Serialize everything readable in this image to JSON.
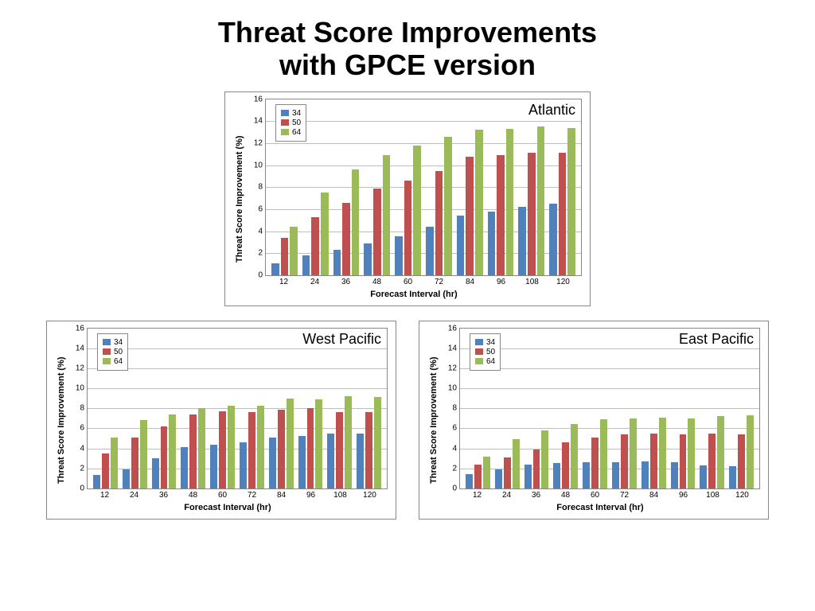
{
  "title_line1": "Threat Score Improvements",
  "title_line2": "with GPCE version",
  "legend_labels": [
    "34",
    "50",
    "64"
  ],
  "series_colors": [
    "#4f81bd",
    "#c0504d",
    "#9bbb59"
  ],
  "axis": {
    "ylabel": "Threat  Score Improvement (%)",
    "xlabel": "Forecast Interval (hr)",
    "categories": [
      "12",
      "24",
      "36",
      "48",
      "60",
      "72",
      "84",
      "96",
      "108",
      "120"
    ],
    "ymax": 16,
    "ytick_step": 2,
    "grid_color": "#bfbfbf",
    "border_color": "#888888",
    "tick_fontsize": 10,
    "label_fontsize": 11
  },
  "charts": [
    {
      "region": "Atlantic",
      "series": [
        [
          1.1,
          1.8,
          2.3,
          2.9,
          3.5,
          4.4,
          5.4,
          5.8,
          6.2,
          6.5
        ],
        [
          3.4,
          5.3,
          6.6,
          7.9,
          8.6,
          9.5,
          10.8,
          10.9,
          11.1,
          11.1
        ],
        [
          4.4,
          7.5,
          9.6,
          10.9,
          11.8,
          12.6,
          13.2,
          13.3,
          13.5,
          13.4
        ]
      ]
    },
    {
      "region": "West Pacific",
      "series": [
        [
          1.3,
          1.9,
          3.0,
          4.1,
          4.4,
          4.6,
          5.1,
          5.2,
          5.5,
          5.5
        ],
        [
          3.5,
          5.1,
          6.2,
          7.4,
          7.7,
          7.6,
          7.9,
          8.0,
          7.6,
          7.6
        ],
        [
          5.1,
          6.8,
          7.4,
          8.0,
          8.3,
          8.3,
          9.0,
          8.9,
          9.2,
          9.1
        ]
      ]
    },
    {
      "region": "East Pacific",
      "series": [
        [
          1.4,
          1.9,
          2.4,
          2.5,
          2.6,
          2.6,
          2.7,
          2.6,
          2.3,
          2.2
        ],
        [
          2.4,
          3.1,
          3.9,
          4.6,
          5.1,
          5.4,
          5.5,
          5.4,
          5.5,
          5.4
        ],
        [
          3.2,
          4.9,
          5.8,
          6.4,
          6.9,
          7.0,
          7.1,
          7.0,
          7.2,
          7.3
        ]
      ]
    }
  ]
}
